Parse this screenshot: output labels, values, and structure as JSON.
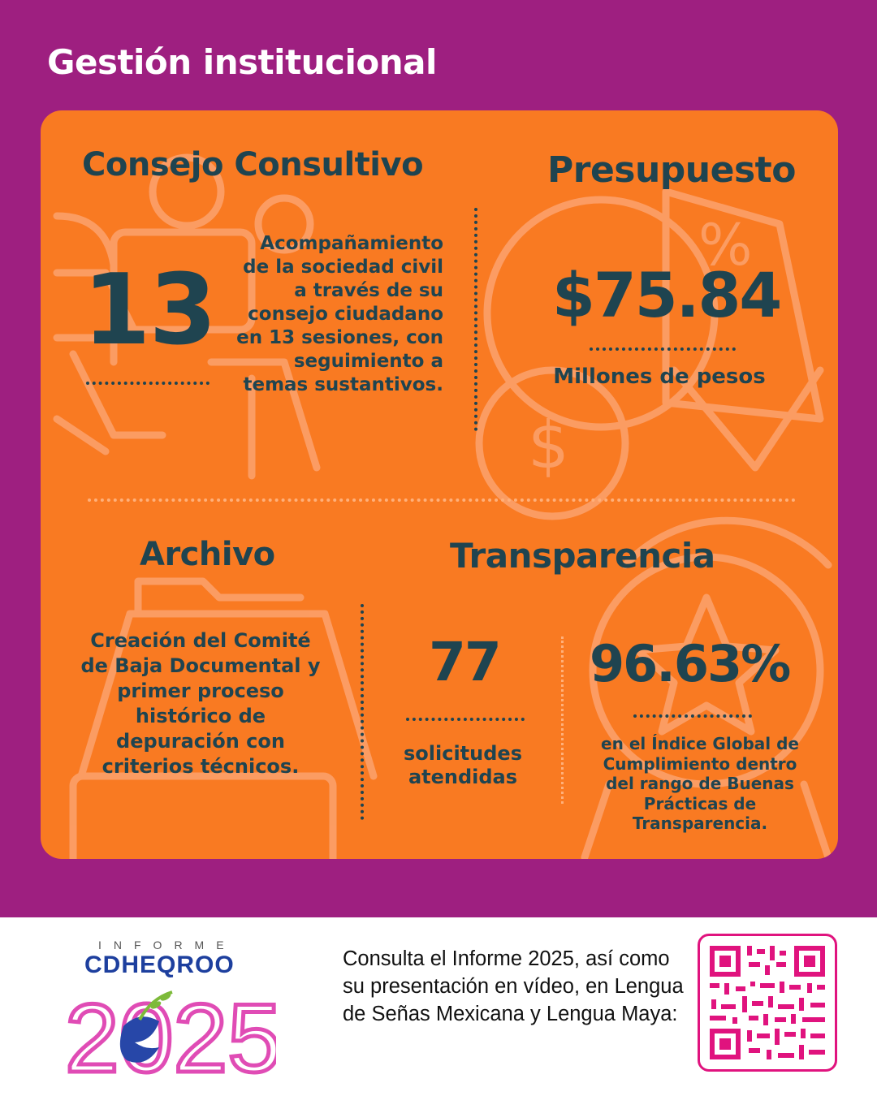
{
  "header": {
    "title": "Gestión institucional"
  },
  "consejo": {
    "title": "Consejo Consultivo",
    "number": "13",
    "description": "Acompañamiento de la sociedad civil a través  de su consejo ciudadano en 13 sesiones, con seguimiento a temas sustantivos."
  },
  "presupuesto": {
    "title": "Presupuesto",
    "amount": "$75.84",
    "unit": "Millones de pesos"
  },
  "archivo": {
    "title": "Archivo",
    "description": "Creación del Comité de Baja Documental y primer proceso histórico de depuración con criterios técnicos."
  },
  "transparencia": {
    "title": "Transparencia",
    "requests_number": "77",
    "requests_label": "solicitudes atendidas",
    "index_value": "96.63%",
    "index_label": "en el Índice Global de Cumplimiento dentro del rango de Buenas Prácticas de Transparencia."
  },
  "footer": {
    "logo_small": "INFORME",
    "logo_name": "CDHEQROO",
    "logo_year": "2025",
    "text": "Consulta el Informe 2025, así como su presentación en vídeo,  en Lengua de Señas Mexicana y Lengua Maya:"
  },
  "colors": {
    "background": "#9e1f80",
    "card": "#f97a22",
    "ink": "#1f4450",
    "qr": "#e0137e"
  }
}
